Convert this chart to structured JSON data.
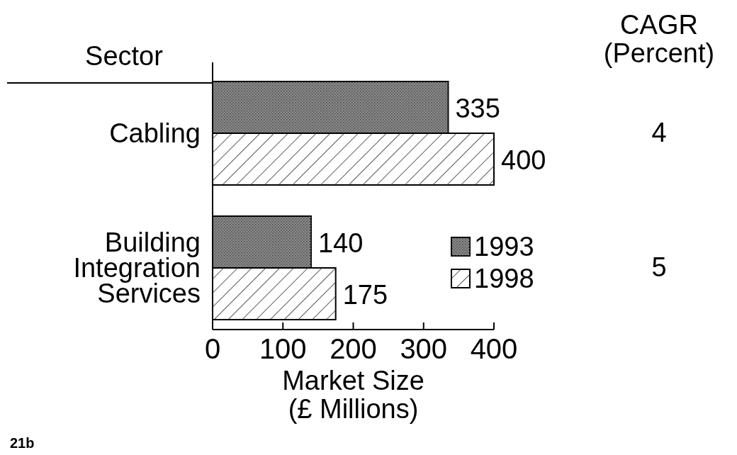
{
  "chart_data": {
    "type": "bar",
    "orientation": "horizontal",
    "categories": [
      "Cabling",
      "Building Integration Services"
    ],
    "series": [
      {
        "name": "1993",
        "color": "#8a8a8a",
        "values": [
          335,
          140
        ]
      },
      {
        "name": "1998",
        "color": "#ffffff",
        "values": [
          400,
          175
        ]
      }
    ],
    "xlim": [
      0,
      400
    ],
    "xticks": [
      0,
      100,
      200,
      300,
      400
    ],
    "xlabel": "Market Size\n(£ Millions)",
    "data_labels": true,
    "legend": "right",
    "grid": false,
    "annotations": [
      "Sector",
      "CAGR\n(Percent)",
      "4",
      "5",
      "21b"
    ]
  }
}
